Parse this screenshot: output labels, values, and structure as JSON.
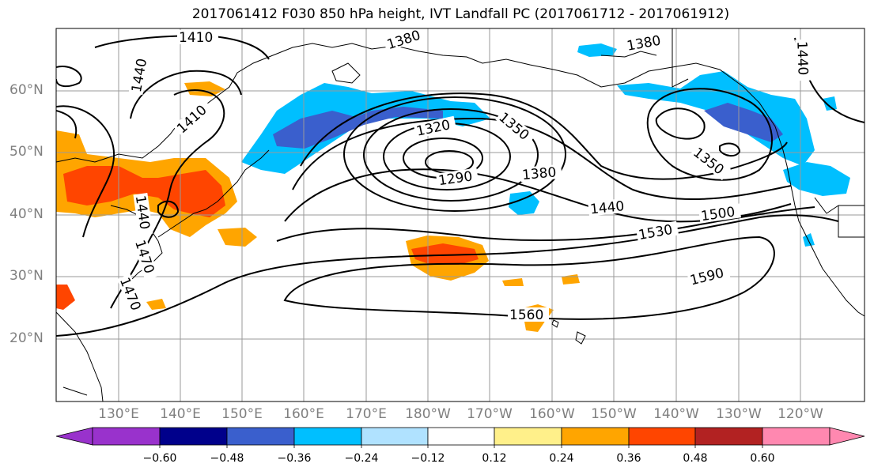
{
  "title": "2017061412 F030 850 hPa height, IVT Landfall PC (2017061712 - 2017061912)",
  "map": {
    "lat_labels": [
      "60°N",
      "50°N",
      "40°N",
      "30°N",
      "20°N"
    ],
    "lon_labels": [
      "130°E",
      "140°E",
      "150°E",
      "160°E",
      "170°E",
      "180°W",
      "170°W",
      "160°W",
      "150°W",
      "140°W",
      "130°W",
      "120°W"
    ],
    "contour_labels": [
      "1410",
      "1380",
      "1380",
      "1440",
      "1440",
      "1410",
      "1320",
      "1350",
      "1290",
      "1380",
      "1350",
      "1440",
      "1500",
      "1530",
      "1590",
      "1560",
      "1440",
      "1470",
      "1470"
    ]
  },
  "colorbar": {
    "ticks": [
      "−0.60",
      "−0.48",
      "−0.36",
      "−0.24",
      "−0.12",
      "0.12",
      "0.24",
      "0.36",
      "0.48",
      "0.60"
    ],
    "colors": [
      "#9932cc",
      "#00008b",
      "#3a5fcd",
      "#00bfff",
      "#b0e2ff",
      "#ffffff",
      "#fff08a",
      "#ffa500",
      "#ff4500",
      "#b22222",
      "#ff88b0"
    ]
  }
}
